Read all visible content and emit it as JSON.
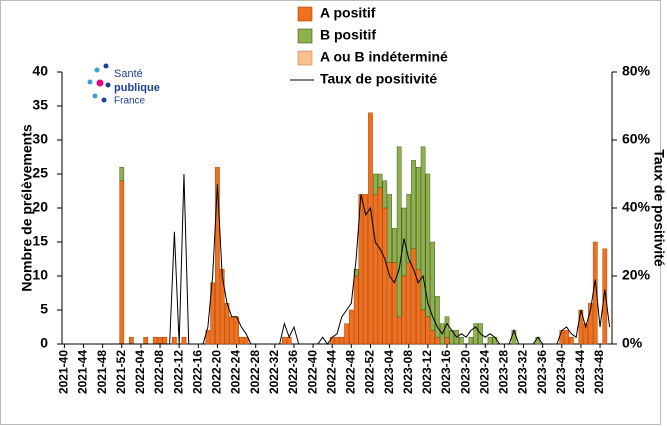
{
  "logo": [
    "Santé",
    "publique",
    "France"
  ],
  "chart_data": {
    "type": "bar-line",
    "y_label": "Nombre de prélèvements",
    "y2_label": "Taux de positivité",
    "categories": [
      "2021-40",
      null,
      null,
      null,
      "2021-44",
      null,
      null,
      null,
      "2021-48",
      null,
      null,
      null,
      "2021-52",
      null,
      null,
      null,
      "2022-04",
      null,
      null,
      null,
      "2022-08",
      null,
      null,
      null,
      "2022-12",
      null,
      null,
      null,
      "2022-16",
      null,
      null,
      null,
      "2022-20",
      null,
      null,
      null,
      "2022-24",
      null,
      null,
      null,
      "2022-28",
      null,
      null,
      null,
      "2022-32",
      null,
      null,
      null,
      "2022-36",
      null,
      null,
      null,
      "2022-40",
      null,
      null,
      null,
      "2022-44",
      null,
      null,
      null,
      "2022-48",
      null,
      null,
      null,
      "2022-52",
      null,
      null,
      null,
      "2023-04",
      null,
      null,
      null,
      "2023-08",
      null,
      null,
      null,
      "2023-12",
      null,
      null,
      null,
      "2023-16",
      null,
      null,
      null,
      "2023-20",
      null,
      null,
      null,
      "2023-24",
      null,
      null,
      null,
      "2023-28",
      null,
      null,
      null,
      "2023-32",
      null,
      null,
      null,
      "2023-36",
      null,
      null,
      null,
      "2023-40",
      null,
      null,
      null,
      "2023-44",
      null,
      null,
      null,
      "2023-48",
      null,
      null
    ],
    "series": [
      {
        "name": "A positif",
        "color": "#f07020",
        "values": [
          0,
          0,
          0,
          0,
          0,
          0,
          0,
          0,
          0,
          0,
          0,
          0,
          24,
          0,
          1,
          0,
          0,
          1,
          0,
          1,
          1,
          1,
          0,
          1,
          0,
          1,
          0,
          0,
          0,
          0,
          2,
          9,
          26,
          11,
          6,
          4,
          4,
          1,
          1,
          0,
          0,
          0,
          0,
          0,
          0,
          0,
          1,
          1,
          0,
          0,
          0,
          0,
          0,
          0,
          0,
          0,
          1,
          1,
          1,
          3,
          5,
          10,
          22,
          22,
          34,
          22,
          23,
          20,
          12,
          12,
          4,
          10,
          12,
          14,
          11,
          5,
          4,
          2,
          1,
          0,
          1,
          0,
          0,
          0,
          0,
          0,
          0,
          0,
          0,
          0,
          0,
          0,
          0,
          0,
          0,
          0,
          0,
          0,
          0,
          0,
          0,
          0,
          0,
          0,
          2,
          2,
          1,
          0,
          5,
          3,
          6,
          15,
          0,
          14,
          0
        ]
      },
      {
        "name": "B positif",
        "color": "#8fb04c",
        "values": [
          0,
          0,
          0,
          0,
          0,
          0,
          0,
          0,
          0,
          0,
          0,
          0,
          2,
          0,
          0,
          0,
          0,
          0,
          0,
          0,
          0,
          0,
          0,
          0,
          0,
          0,
          0,
          0,
          0,
          0,
          0,
          0,
          0,
          0,
          0,
          0,
          0,
          0,
          0,
          0,
          0,
          0,
          0,
          0,
          0,
          0,
          0,
          0,
          0,
          0,
          0,
          0,
          0,
          0,
          0,
          0,
          0,
          0,
          0,
          0,
          0,
          1,
          0,
          0,
          0,
          3,
          2,
          4,
          10,
          5,
          25,
          10,
          10,
          13,
          15,
          24,
          21,
          13,
          6,
          3,
          3,
          2,
          2,
          1,
          0,
          1,
          3,
          3,
          0,
          1,
          1,
          0,
          0,
          0,
          2,
          0,
          0,
          0,
          0,
          1,
          0,
          0,
          0,
          0,
          0,
          0,
          0,
          0,
          0,
          0,
          0,
          0,
          0,
          0,
          0
        ]
      },
      {
        "name": "A ou B indéterminé",
        "color": "#fac090",
        "values": [
          0,
          0,
          0,
          0,
          0,
          0,
          0,
          0,
          0,
          0,
          0,
          0,
          0,
          0,
          0,
          0,
          0,
          0,
          0,
          0,
          0,
          0,
          0,
          0,
          0,
          0,
          0,
          0,
          0,
          0,
          0,
          0,
          0,
          0,
          0,
          0,
          0,
          0,
          0,
          0,
          0,
          0,
          0,
          0,
          0,
          0,
          0,
          0,
          0,
          0,
          0,
          0,
          0,
          0,
          0,
          0,
          0,
          0,
          0,
          0,
          0,
          0,
          0,
          0,
          0,
          0,
          0,
          0,
          0,
          0,
          0,
          0,
          0,
          0,
          0,
          0,
          0,
          0,
          0,
          0,
          0,
          0,
          0,
          0,
          0,
          0,
          0,
          0,
          0,
          0,
          0,
          0,
          0,
          0,
          0,
          0,
          0,
          0,
          0,
          0,
          0,
          0,
          0,
          0,
          0,
          0,
          0,
          0,
          0,
          0,
          0,
          0,
          0,
          0,
          0
        ]
      },
      {
        "name": "Taux de positivité",
        "color": "#000000",
        "axis": "y2",
        "type": "line",
        "values": [
          0,
          0,
          0,
          0,
          0,
          0,
          0,
          0,
          0,
          0,
          0,
          0,
          0,
          0,
          0,
          0,
          0,
          0,
          0,
          0,
          0,
          0,
          0,
          33,
          0,
          50,
          0,
          0,
          0,
          0,
          5,
          20,
          47,
          20,
          12,
          8,
          8,
          5,
          3,
          0,
          0,
          0,
          0,
          0,
          0,
          0,
          6,
          2,
          5,
          0,
          0,
          0,
          0,
          0,
          2,
          0,
          2,
          3,
          8,
          10,
          12,
          25,
          44,
          38,
          40,
          30,
          28,
          25,
          20,
          18,
          22,
          31,
          25,
          22,
          18,
          20,
          12,
          8,
          5,
          3,
          6,
          4,
          2,
          3,
          2,
          4,
          5,
          3,
          2,
          3,
          2,
          0,
          0,
          0,
          4,
          0,
          0,
          0,
          0,
          2,
          0,
          0,
          0,
          0,
          4,
          5,
          3,
          2,
          10,
          5,
          10,
          19,
          5,
          16,
          5
        ]
      }
    ],
    "ylim": [
      0,
      40
    ],
    "yticks": [
      0,
      5,
      10,
      15,
      20,
      25,
      30,
      35,
      40
    ],
    "y2lim": [
      0,
      80
    ],
    "y2ticks": [
      {
        "value": 0,
        "label": "0%"
      },
      {
        "value": 20,
        "label": "20%"
      },
      {
        "value": 40,
        "label": "40%"
      },
      {
        "value": 60,
        "label": "60%"
      },
      {
        "value": 80,
        "label": "80%"
      }
    ],
    "stacked": true,
    "legend": "top"
  }
}
